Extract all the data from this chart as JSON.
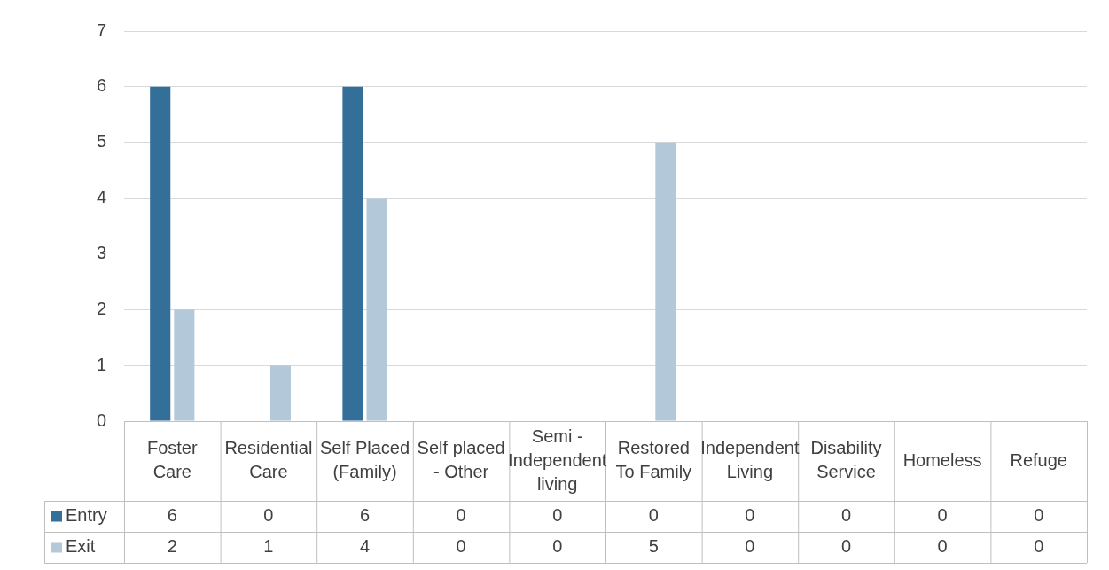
{
  "chart_data": {
    "type": "bar",
    "categories": [
      "Foster Care",
      "Residential Care",
      "Self Placed (Family)",
      "Self placed - Other",
      "Semi - Independent living",
      "Restored To Family",
      "Independent Living",
      "Disability Service",
      "Homeless",
      "Refuge"
    ],
    "series": [
      {
        "name": "Entry",
        "color": "#336f99",
        "values": [
          6,
          0,
          6,
          0,
          0,
          0,
          0,
          0,
          0,
          0
        ]
      },
      {
        "name": "Exit",
        "color": "#b3c8d8",
        "values": [
          2,
          1,
          4,
          0,
          0,
          5,
          0,
          0,
          0,
          0
        ]
      }
    ],
    "ylim": [
      0,
      7
    ],
    "yticks": [
      0,
      1,
      2,
      3,
      4,
      5,
      6,
      7
    ],
    "grid": "y",
    "legend": "bottom",
    "data_labels": true
  }
}
